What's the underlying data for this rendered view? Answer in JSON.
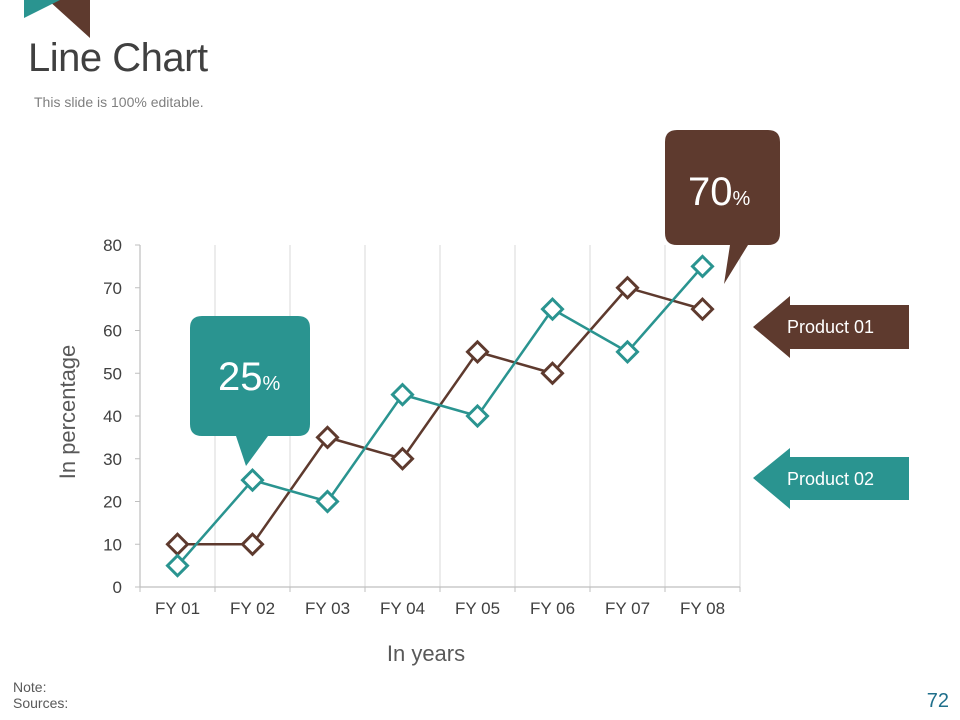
{
  "slide": {
    "title": "Line Chart",
    "subtitle": "This slide is 100% editable.",
    "note_label": "Note:",
    "sources_label": "Sources:",
    "page_number": "72"
  },
  "colors": {
    "product01": "#5e3a2e",
    "product02": "#2a9490",
    "grid": "#d9d9d9",
    "axis": "#bfbfbf",
    "text": "#404040"
  },
  "callouts": [
    {
      "value": "25",
      "unit": "%",
      "series": "Product 02"
    },
    {
      "value": "70",
      "unit": "%",
      "series": "Product 01"
    }
  ],
  "legend": {
    "product01": "Product 01",
    "product02": "Product 02"
  },
  "chart_data": {
    "type": "line",
    "title": "",
    "xlabel": "In years",
    "ylabel": "In percentage",
    "categories": [
      "FY 01",
      "FY 02",
      "FY 03",
      "FY 04",
      "FY 05",
      "FY 06",
      "FY 07",
      "FY 08"
    ],
    "ylim": [
      0,
      80
    ],
    "yticks": [
      0,
      10,
      20,
      30,
      40,
      50,
      60,
      70,
      80
    ],
    "grid": "vertical",
    "legend_position": "right",
    "marker": "diamond",
    "series": [
      {
        "name": "Product 01",
        "color": "#5e3a2e",
        "values": [
          10,
          10,
          35,
          30,
          55,
          50,
          70,
          65
        ]
      },
      {
        "name": "Product 02",
        "color": "#2a9490",
        "values": [
          5,
          25,
          20,
          45,
          40,
          65,
          55,
          75
        ]
      }
    ]
  }
}
